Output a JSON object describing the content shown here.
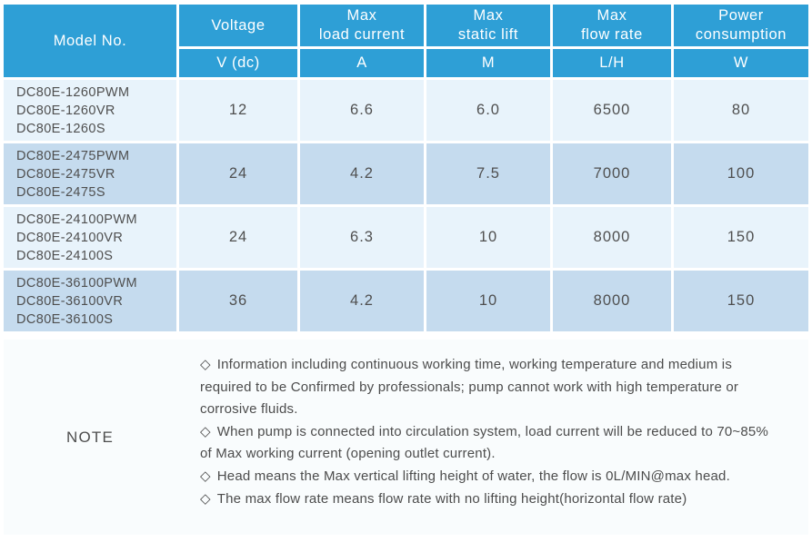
{
  "table": {
    "header": {
      "model_label": "Model No.",
      "columns": [
        {
          "title_lines": [
            "Voltage"
          ],
          "unit": "V (dc)"
        },
        {
          "title_lines": [
            "Max",
            "load current"
          ],
          "unit": "A"
        },
        {
          "title_lines": [
            "Max",
            "static lift"
          ],
          "unit": "M"
        },
        {
          "title_lines": [
            "Max",
            "flow rate"
          ],
          "unit": "L/H"
        },
        {
          "title_lines": [
            "Power",
            "consumption"
          ],
          "unit": "W"
        }
      ]
    },
    "rows": [
      {
        "models": [
          "DC80E-1260PWM",
          "DC80E-1260VR",
          "DC80E-1260S"
        ],
        "voltage": "12",
        "max_load_current": "6.6",
        "max_static_lift": "6.0",
        "max_flow_rate": "6500",
        "power_consumption": "80"
      },
      {
        "models": [
          "DC80E-2475PWM",
          "DC80E-2475VR",
          "DC80E-2475S"
        ],
        "voltage": "24",
        "max_load_current": "4.2",
        "max_static_lift": "7.5",
        "max_flow_rate": "7000",
        "power_consumption": "100"
      },
      {
        "models": [
          "DC80E-24100PWM",
          "DC80E-24100VR",
          "DC80E-24100S"
        ],
        "voltage": "24",
        "max_load_current": "6.3",
        "max_static_lift": "10",
        "max_flow_rate": "8000",
        "power_consumption": "150"
      },
      {
        "models": [
          "DC80E-36100PWM",
          "DC80E-36100VR",
          "DC80E-36100S"
        ],
        "voltage": "36",
        "max_load_current": "4.2",
        "max_static_lift": "10",
        "max_flow_rate": "8000",
        "power_consumption": "150"
      }
    ]
  },
  "note": {
    "label": "NOTE",
    "bullet": "◇",
    "items": [
      "Information including continuous working time, working temperature and medium is required to be Confirmed by professionals; pump cannot work with high temperature or corrosive fluids.",
      "When pump is connected into circulation system, load current will be reduced to 70~85% of Max working current (opening outlet current).",
      "Head means the Max vertical lifting height of water, the flow is 0L/MIN@max head.",
      "The max flow rate means flow rate with no lifting height(horizontal flow rate)"
    ]
  },
  "colors": {
    "header_blue": "#2e9fd6",
    "row_light": "#e8f3fb",
    "row_dark": "#c5dbee",
    "note_bg": "#f9fcfd",
    "text": "#4d4d4d"
  }
}
